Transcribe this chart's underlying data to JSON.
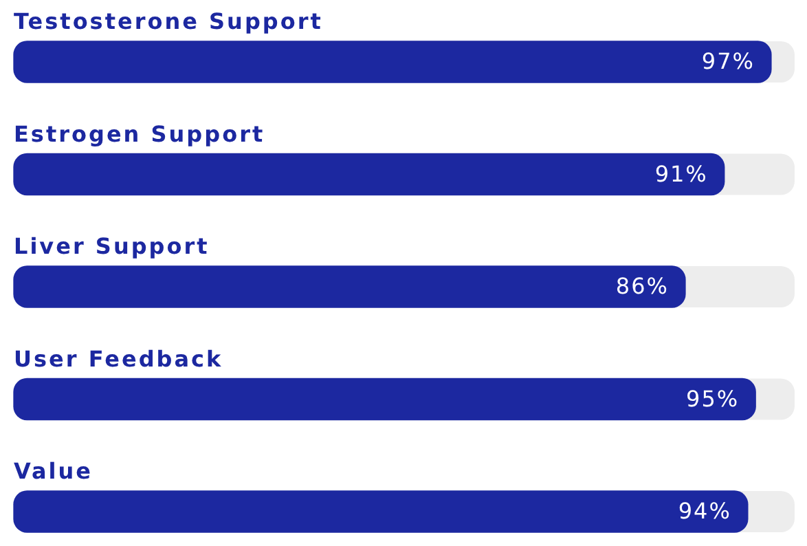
{
  "chart_data": {
    "type": "bar",
    "orientation": "horizontal",
    "categories": [
      "Testosterone Support",
      "Estrogen Support",
      "Liver Support",
      "User Feedback",
      "Value"
    ],
    "values": [
      97,
      91,
      86,
      95,
      94
    ],
    "value_labels": [
      "97%",
      "91%",
      "86%",
      "95%",
      "94%"
    ],
    "color": "#1c28a0"
  }
}
